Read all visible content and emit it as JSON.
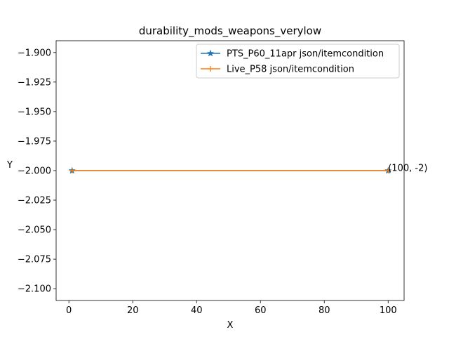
{
  "chart_data": {
    "type": "line",
    "title": "durability_mods_weapons_verylow",
    "xlabel": "X",
    "ylabel": "Y",
    "xlim": [
      -4.0,
      105.0
    ],
    "ylim": [
      -2.11,
      -1.89
    ],
    "x_ticks": [
      0,
      20,
      40,
      60,
      80,
      100
    ],
    "x_tick_labels": [
      "0",
      "20",
      "40",
      "60",
      "80",
      "100"
    ],
    "y_ticks": [
      -1.9,
      -1.925,
      -1.95,
      -1.975,
      -2.0,
      -2.025,
      -2.05,
      -2.075,
      -2.1
    ],
    "y_tick_labels": [
      "−1.900",
      "−1.925",
      "−1.950",
      "−1.975",
      "−2.000",
      "−2.025",
      "−2.050",
      "−2.075",
      "−2.100"
    ],
    "grid": false,
    "legend_position": "upper-right",
    "series": [
      {
        "name": "PTS_P60_11apr json/itemcondition",
        "color": "#1f77b4",
        "marker": "star",
        "x": [
          1,
          100
        ],
        "y": [
          -2,
          -2
        ]
      },
      {
        "name": "Live_P58 json/itemcondition",
        "color": "#ff7f0e",
        "marker": "plus",
        "x": [
          1,
          100
        ],
        "y": [
          -2,
          -2
        ]
      }
    ],
    "annotations": [
      {
        "text": "(100, -2)",
        "x": 100,
        "y": -2
      }
    ]
  }
}
